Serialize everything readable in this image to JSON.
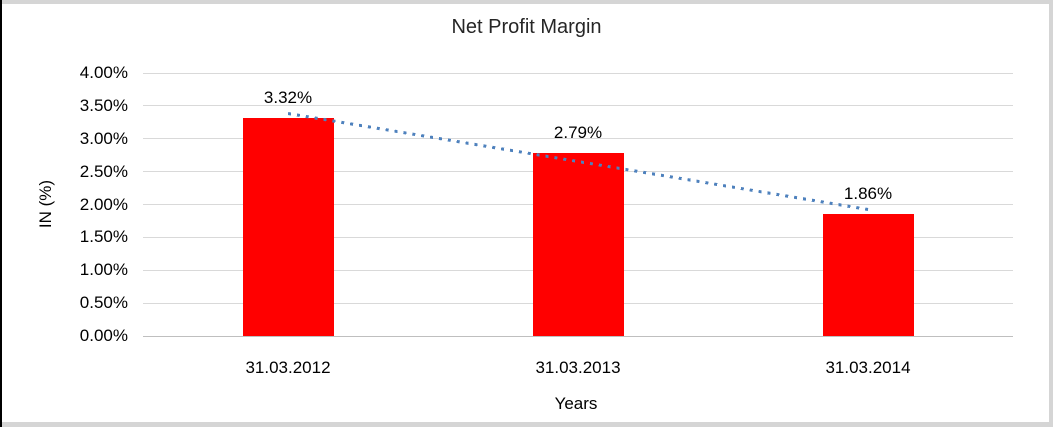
{
  "chart_data": {
    "type": "bar",
    "title": "Net Profit Margin",
    "categories": [
      "31.03.2012",
      "31.03.2013",
      "31.03.2014"
    ],
    "values": [
      3.32,
      2.79,
      1.86
    ],
    "data_labels": [
      "3.32%",
      "2.79%",
      "1.86%"
    ],
    "xlabel": "Years",
    "ylabel": "IN (%)",
    "y_tick_labels": [
      "4.00%",
      "3.50%",
      "3.00%",
      "2.50%",
      "2.00%",
      "1.50%",
      "1.00%",
      "0.50%",
      "0.00%"
    ],
    "ylim": [
      0,
      4
    ],
    "grid": true,
    "legend": "none",
    "series_name": "Net Profit Margin",
    "trendline": {
      "type": "linear",
      "line_style": "dotted",
      "start_value": 3.39,
      "end_value": 1.93
    },
    "colors": {
      "bar": "#FF0000",
      "trendline": "#4E81BD",
      "gridline": "#D9D9D9",
      "axis_line": "#BFBFBF",
      "text": "#000000",
      "title_text": "#262626",
      "frame_border": "#D5D5D5",
      "frame_edge": "#000000"
    }
  }
}
